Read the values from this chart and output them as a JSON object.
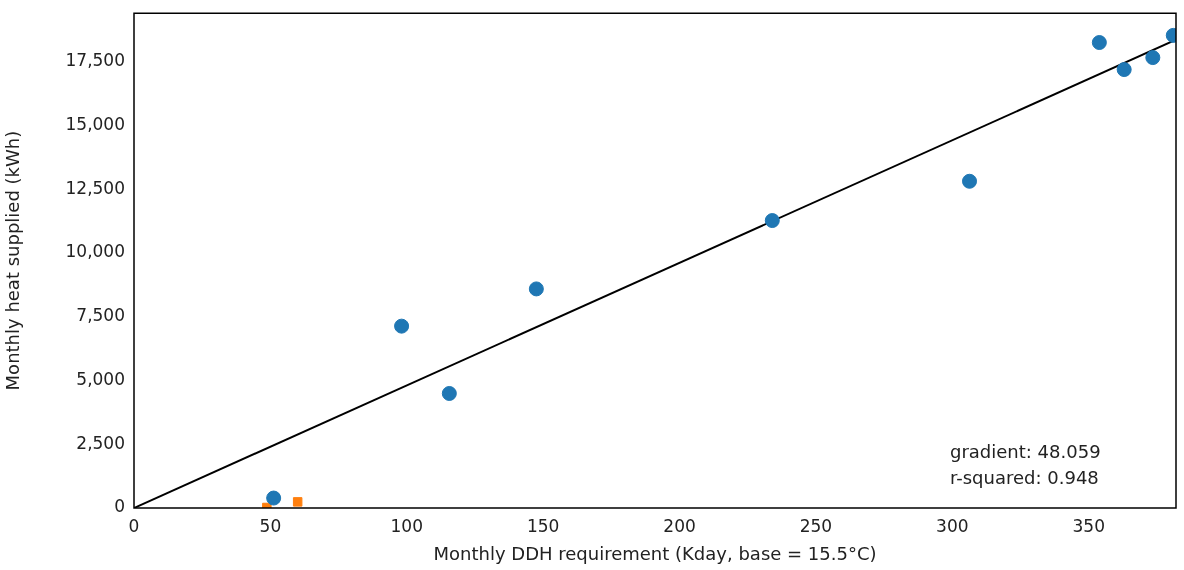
{
  "chart_data": {
    "type": "scatter",
    "xlabel": "Monthly DDH requirement (Kday, base = 15.5°C)",
    "ylabel": "Monthly heat supplied (kWh)",
    "xlim": [
      0,
      382
    ],
    "xticks": [
      0,
      50,
      100,
      150,
      200,
      250,
      300,
      350
    ],
    "ylim": [
      0,
      19400
    ],
    "yticks": [
      {
        "value": 0,
        "label": "0"
      },
      {
        "value": 2500,
        "label": "2,500"
      },
      {
        "value": 5000,
        "label": "5,000"
      },
      {
        "value": 7500,
        "label": "7,500"
      },
      {
        "value": 10000,
        "label": "10,000"
      },
      {
        "value": 12500,
        "label": "12,500"
      },
      {
        "value": 15000,
        "label": "15,000"
      },
      {
        "value": 17500,
        "label": "17,500"
      }
    ],
    "grid": false,
    "legend": false,
    "series": [
      {
        "type": "scatter",
        "marker": "circle",
        "color": "#1f77b4",
        "x": [
          51.2,
          98.1,
          115.6,
          147.5,
          234,
          306.3,
          353.9,
          363,
          373.5,
          381
        ],
        "values": [
          390,
          7130,
          4490,
          8590,
          11270,
          12810,
          18250,
          17190,
          17660,
          18530
        ]
      },
      {
        "type": "scatter",
        "marker": "square",
        "color": "#ff7f0e",
        "x": [
          48.7,
          60
        ],
        "values": [
          20,
          240
        ]
      },
      {
        "type": "line",
        "marker": "none",
        "line_style": "solid",
        "color": "#000000",
        "x": [
          0,
          382
        ],
        "values": [
          0,
          18360
        ]
      }
    ],
    "annotations": [
      "gradient: 48.059",
      "r-squared: 0.948"
    ]
  }
}
